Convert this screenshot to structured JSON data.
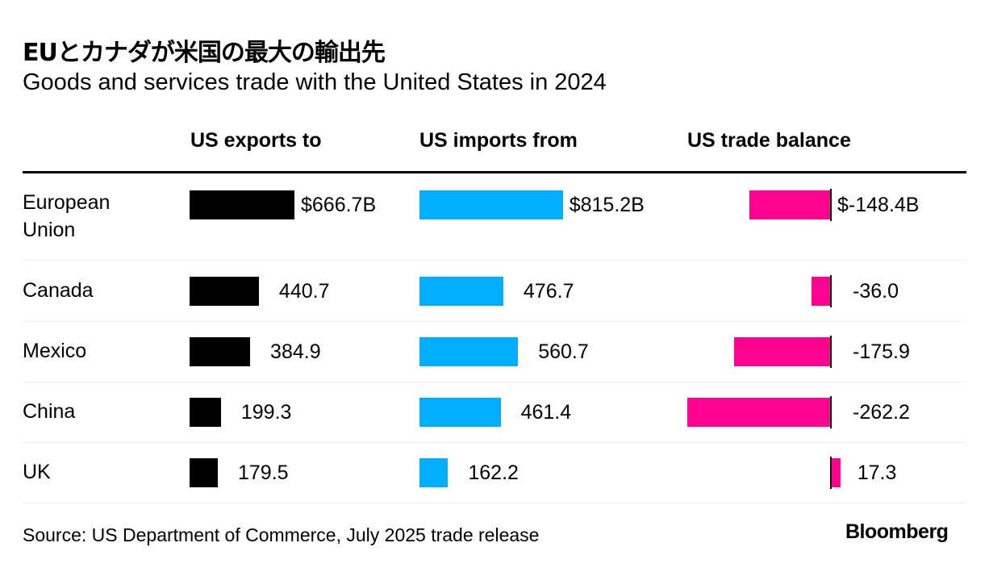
{
  "chart_data": {
    "type": "bar",
    "title": "EUとカナダが米国の最大の輸出先",
    "subtitle": "Goods and services trade with the United States in 2024",
    "columns": [
      "US exports to",
      "US imports from",
      "US trade balance"
    ],
    "categories": [
      "European Union",
      "Canada",
      "Mexico",
      "China",
      "UK"
    ],
    "series": [
      {
        "name": "US exports to",
        "values": [
          666.7,
          440.7,
          384.9,
          199.3,
          179.5
        ],
        "labels": [
          "$666.7B",
          "440.7",
          "384.9",
          "199.3",
          "179.5"
        ],
        "color": "#000000"
      },
      {
        "name": "US imports from",
        "values": [
          815.2,
          476.7,
          560.7,
          461.4,
          162.2
        ],
        "labels": [
          "$815.2B",
          "476.7",
          "560.7",
          "461.4",
          "162.2"
        ],
        "color": "#00adfe"
      },
      {
        "name": "US trade balance",
        "values": [
          -148.4,
          -36.0,
          -175.9,
          -262.2,
          17.3
        ],
        "labels": [
          "$-148.4B",
          "-36.0",
          "-175.9",
          "-262.2",
          "17.3"
        ],
        "color": "#ff0290"
      }
    ],
    "units": "USD billions"
  },
  "row_labels": [
    "European\nUnion",
    "Canada",
    "Mexico",
    "China",
    "UK"
  ],
  "footer": {
    "source": "Source: US Department of Commerce, July 2025 trade release",
    "logo": "Bloomberg"
  }
}
